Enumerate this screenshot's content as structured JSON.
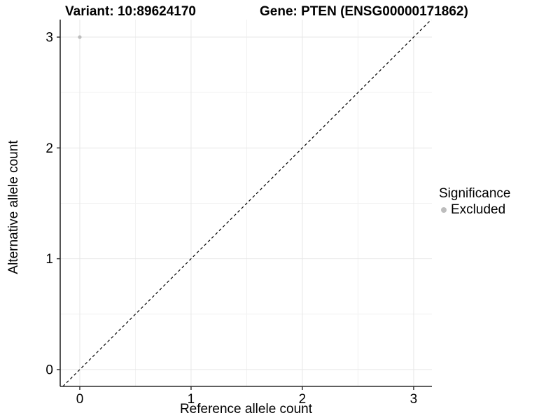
{
  "titles": {
    "variant": "Variant: 10:89624170",
    "gene": "Gene: PTEN (ENSG00000171862)"
  },
  "chart_data": {
    "type": "scatter",
    "title": "Variant: 10:89624170 / Gene: PTEN (ENSG00000171862)",
    "xlabel": "Reference allele count",
    "ylabel": "Alternative allele count",
    "xlim": [
      -0.176,
      3.164
    ],
    "ylim": [
      -0.152,
      3.158
    ],
    "xticks": [
      0,
      1,
      2,
      3
    ],
    "yticks": [
      0,
      1,
      2,
      3
    ],
    "minor_tick_step": 0.5,
    "grid": "on",
    "reference_line": {
      "type": "identity",
      "slope": 1,
      "intercept": 0,
      "linestyle": "dashed",
      "color": "#000000"
    },
    "series": [
      {
        "name": "Excluded",
        "color": "#bdbdbd",
        "points": [
          [
            0,
            3
          ]
        ]
      }
    ],
    "legend": {
      "position": "right",
      "title": "Significance",
      "entries": [
        {
          "label": "Excluded",
          "color": "#bdbdbd"
        }
      ]
    },
    "colors": {
      "grid_major": "#e7e7e7",
      "grid_minor": "#f2f2f2",
      "axis": "#2a2a2a",
      "tick_label": "#000000"
    }
  }
}
